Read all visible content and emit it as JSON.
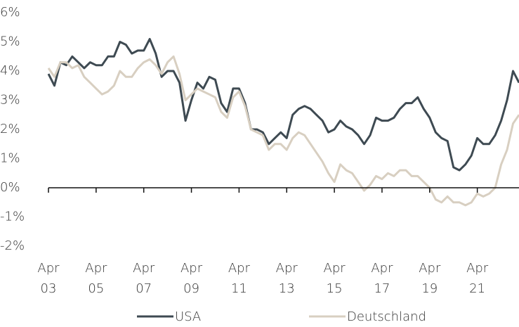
{
  "chart_data": {
    "type": "line",
    "x": [
      2003.25,
      2003.5,
      2003.75,
      2004.0,
      2004.25,
      2004.5,
      2004.75,
      2005.0,
      2005.25,
      2005.5,
      2005.75,
      2006.0,
      2006.25,
      2006.5,
      2006.75,
      2007.0,
      2007.25,
      2007.5,
      2007.75,
      2008.0,
      2008.25,
      2008.5,
      2008.75,
      2009.0,
      2009.25,
      2009.5,
      2009.75,
      2010.0,
      2010.25,
      2010.5,
      2010.75,
      2011.0,
      2011.25,
      2011.5,
      2011.75,
      2012.0,
      2012.25,
      2012.5,
      2012.75,
      2013.0,
      2013.25,
      2013.5,
      2013.75,
      2014.0,
      2014.25,
      2014.5,
      2014.75,
      2015.0,
      2015.25,
      2015.5,
      2015.75,
      2016.0,
      2016.25,
      2016.5,
      2016.75,
      2017.0,
      2017.25,
      2017.5,
      2017.75,
      2018.0,
      2018.25,
      2018.5,
      2018.75,
      2019.0,
      2019.25,
      2019.5,
      2019.75,
      2020.0,
      2020.25,
      2020.5,
      2020.75,
      2021.0,
      2021.25,
      2021.5,
      2021.75,
      2022.0,
      2022.25,
      2022.5,
      2022.75,
      2023.0
    ],
    "series": [
      {
        "name": "USA",
        "color": "#3e4a52",
        "values": [
          3.9,
          3.5,
          4.3,
          4.2,
          4.5,
          4.3,
          4.1,
          4.3,
          4.2,
          4.2,
          4.5,
          4.5,
          5.0,
          4.9,
          4.6,
          4.7,
          4.7,
          5.1,
          4.6,
          3.8,
          4.0,
          4.0,
          3.6,
          2.3,
          3.0,
          3.6,
          3.4,
          3.8,
          3.7,
          2.9,
          2.6,
          3.4,
          3.4,
          2.9,
          2.0,
          2.0,
          1.9,
          1.5,
          1.7,
          1.9,
          1.7,
          2.5,
          2.7,
          2.8,
          2.7,
          2.5,
          2.3,
          1.9,
          2.0,
          2.3,
          2.1,
          2.0,
          1.8,
          1.5,
          1.8,
          2.4,
          2.3,
          2.3,
          2.4,
          2.7,
          2.9,
          2.9,
          3.1,
          2.7,
          2.4,
          1.9,
          1.7,
          1.6,
          0.7,
          0.6,
          0.8,
          1.1,
          1.7,
          1.5,
          1.5,
          1.8,
          2.3,
          3.0,
          4.0,
          3.6
        ]
      },
      {
        "name": "Deutschland",
        "color": "#d8cfc1",
        "values": [
          4.1,
          3.8,
          4.3,
          4.3,
          4.1,
          4.2,
          3.8,
          3.6,
          3.4,
          3.2,
          3.3,
          3.5,
          4.0,
          3.8,
          3.8,
          4.1,
          4.3,
          4.4,
          4.2,
          3.9,
          4.3,
          4.5,
          3.9,
          3.0,
          3.2,
          3.4,
          3.3,
          3.2,
          3.1,
          2.6,
          2.4,
          3.1,
          3.3,
          2.8,
          2.0,
          1.9,
          1.8,
          1.3,
          1.5,
          1.5,
          1.3,
          1.7,
          1.9,
          1.8,
          1.5,
          1.2,
          0.9,
          0.5,
          0.2,
          0.8,
          0.6,
          0.5,
          0.2,
          -0.1,
          0.1,
          0.4,
          0.3,
          0.5,
          0.4,
          0.6,
          0.6,
          0.4,
          0.4,
          0.2,
          0.0,
          -0.4,
          -0.5,
          -0.3,
          -0.5,
          -0.5,
          -0.6,
          -0.5,
          -0.2,
          -0.3,
          -0.2,
          0.0,
          0.8,
          1.3,
          2.2,
          2.5
        ]
      }
    ],
    "xlim": [
      2003.25,
      2023.0
    ],
    "xticks": [
      {
        "value": 2003.25,
        "label": "Apr 03"
      },
      {
        "value": 2005.25,
        "label": "Apr 05"
      },
      {
        "value": 2007.25,
        "label": "Apr 07"
      },
      {
        "value": 2009.25,
        "label": "Apr 09"
      },
      {
        "value": 2011.25,
        "label": "Apr 11"
      },
      {
        "value": 2013.25,
        "label": "Apr 13"
      },
      {
        "value": 2015.25,
        "label": "Apr 15"
      },
      {
        "value": 2017.25,
        "label": "Apr 17"
      },
      {
        "value": 2019.25,
        "label": "Apr 19"
      },
      {
        "value": 2021.25,
        "label": "Apr 21"
      }
    ],
    "ylim": [
      -2,
      6
    ],
    "yticks": [
      {
        "value": -2,
        "label": "-2%"
      },
      {
        "value": -1,
        "label": "-1%"
      },
      {
        "value": 0,
        "label": "0%"
      },
      {
        "value": 1,
        "label": "1%"
      },
      {
        "value": 2,
        "label": "2%"
      },
      {
        "value": 3,
        "label": "3%"
      },
      {
        "value": 4,
        "label": "4%"
      },
      {
        "value": 5,
        "label": "5%"
      },
      {
        "value": 6,
        "label": "6%"
      }
    ],
    "legend": "bottom"
  }
}
